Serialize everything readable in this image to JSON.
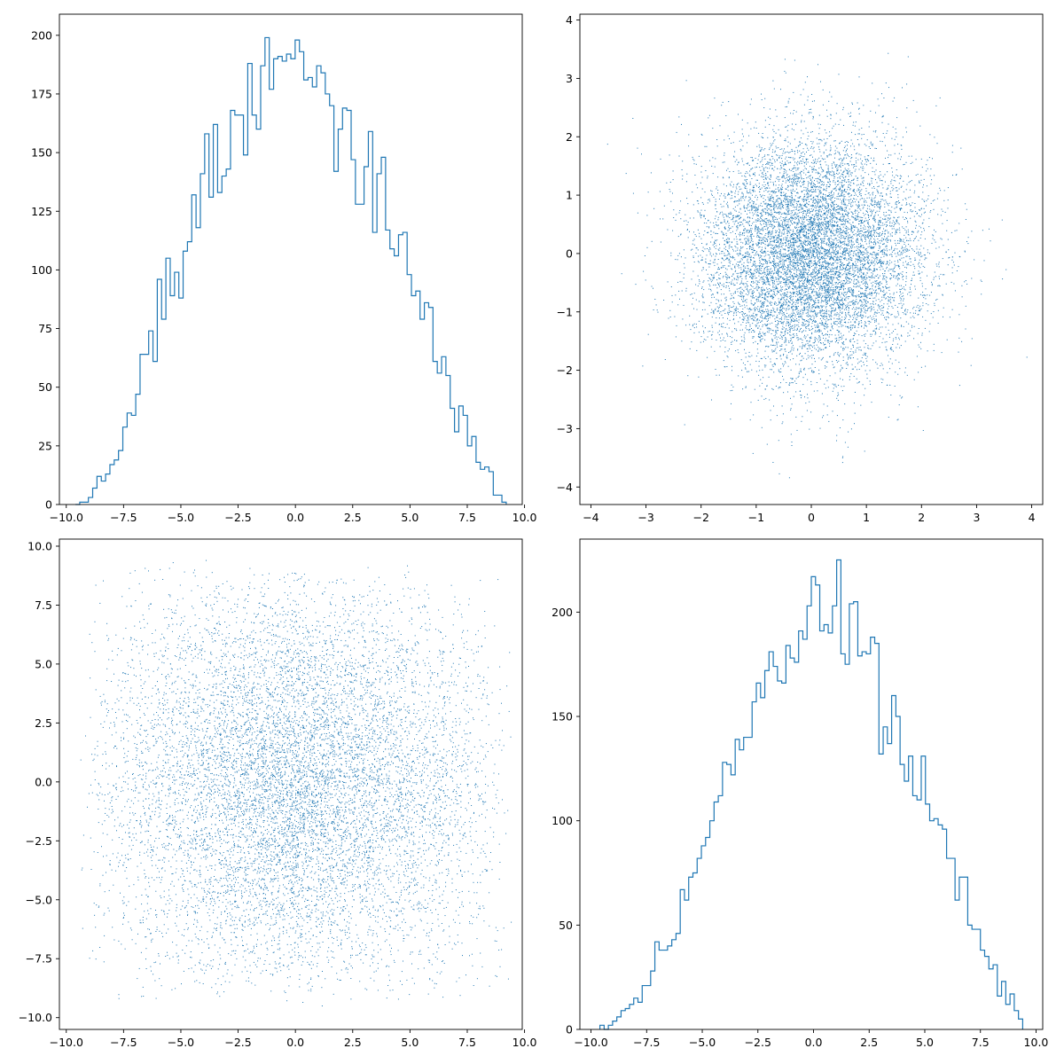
{
  "chart_data": [
    {
      "type": "histogram",
      "position": "top-left",
      "title": "",
      "xlabel": "",
      "ylabel": "",
      "color": "#1f77b4",
      "histtype": "step",
      "bins": 100,
      "bin_range": [
        -9.6,
        9.2
      ],
      "xlim": [
        -10.3,
        9.9
      ],
      "ylim": [
        0,
        209
      ],
      "xticks": [
        -10,
        -7.5,
        -5,
        -2.5,
        0,
        2.5,
        5,
        7.5,
        10
      ],
      "xtick_labels": [
        "−10.0",
        "−7.5",
        "−5.0",
        "−2.5",
        "0.0",
        "2.5",
        "5.0",
        "7.5",
        "10.0"
      ],
      "yticks": [
        0,
        25,
        50,
        75,
        100,
        125,
        150,
        175,
        200
      ],
      "ytick_labels": [
        "0",
        "25",
        "50",
        "75",
        "100",
        "125",
        "150",
        "175",
        "200"
      ],
      "counts": [
        0,
        1,
        1,
        3,
        7,
        12,
        10,
        13,
        17,
        19,
        23,
        33,
        39,
        38,
        47,
        64,
        64,
        74,
        61,
        96,
        79,
        105,
        89,
        99,
        88,
        108,
        112,
        132,
        118,
        141,
        158,
        131,
        162,
        133,
        140,
        143,
        168,
        166,
        166,
        149,
        188,
        166,
        160,
        187,
        199,
        177,
        190,
        191,
        189,
        192,
        190,
        198,
        193,
        181,
        182,
        178,
        187,
        184,
        175,
        170,
        142,
        160,
        169,
        168,
        147,
        128,
        128,
        144,
        159,
        116,
        141,
        148,
        117,
        109,
        106,
        115,
        116,
        98,
        89,
        91,
        79,
        86,
        84,
        61,
        56,
        63,
        55,
        41,
        31,
        42,
        38,
        25,
        29,
        18,
        15,
        16,
        14,
        4,
        4,
        1
      ]
    },
    {
      "type": "scatter",
      "position": "top-right",
      "title": "",
      "xlabel": "",
      "ylabel": "",
      "color": "#1f77b4",
      "marker": ",",
      "n_points": 10000,
      "distribution": "standard normal, mean 0, std 1",
      "xlim": [
        -4.2,
        4.2
      ],
      "ylim": [
        -4.3,
        4.1
      ],
      "xticks": [
        -4,
        -3,
        -2,
        -1,
        0,
        1,
        2,
        3,
        4
      ],
      "xtick_labels": [
        "−4",
        "−3",
        "−2",
        "−1",
        "0",
        "1",
        "2",
        "3",
        "4"
      ],
      "yticks": [
        -4,
        -3,
        -2,
        -1,
        0,
        1,
        2,
        3,
        4
      ],
      "ytick_labels": [
        "−4",
        "−3",
        "−2",
        "−1",
        "0",
        "1",
        "2",
        "3",
        "4"
      ]
    },
    {
      "type": "scatter",
      "position": "bottom-left",
      "title": "",
      "xlabel": "",
      "ylabel": "",
      "color": "#1f77b4",
      "marker": ",",
      "n_points": 10000,
      "distribution": "symmetric triangular, centered at 0, spanning about -9.5 to 9.5",
      "xlim": [
        -10.3,
        9.9
      ],
      "ylim": [
        -10.5,
        10.3
      ],
      "xticks": [
        -10,
        -7.5,
        -5,
        -2.5,
        0,
        2.5,
        5,
        7.5,
        10
      ],
      "xtick_labels": [
        "−10.0",
        "−7.5",
        "−5.0",
        "−2.5",
        "0.0",
        "2.5",
        "5.0",
        "7.5",
        "10.0"
      ],
      "yticks": [
        -10,
        -7.5,
        -5,
        -2.5,
        0,
        2.5,
        5,
        7.5,
        10
      ],
      "ytick_labels": [
        "−10.0",
        "−7.5",
        "−5.0",
        "−2.5",
        "0.0",
        "2.5",
        "5.0",
        "7.5",
        "10.0"
      ]
    },
    {
      "type": "histogram",
      "position": "bottom-right",
      "title": "",
      "xlabel": "",
      "ylabel": "",
      "color": "#1f77b4",
      "histtype": "step",
      "bins": 100,
      "bin_range": [
        -9.6,
        9.4
      ],
      "xlim": [
        -10.5,
        10.3
      ],
      "ylim": [
        0,
        235
      ],
      "xticks": [
        -10,
        -7.5,
        -5,
        -2.5,
        0,
        2.5,
        5,
        7.5,
        10
      ],
      "xtick_labels": [
        "−10.0",
        "−7.5",
        "−5.0",
        "−2.5",
        "0.0",
        "2.5",
        "5.0",
        "7.5",
        "10.0"
      ],
      "yticks": [
        0,
        50,
        100,
        150,
        200
      ],
      "ytick_labels": [
        "0",
        "50",
        "100",
        "150",
        "200"
      ],
      "counts": [
        2,
        0,
        2,
        4,
        6,
        9,
        10,
        12,
        15,
        13,
        21,
        21,
        28,
        42,
        38,
        38,
        40,
        43,
        46,
        67,
        62,
        73,
        75,
        82,
        88,
        92,
        100,
        109,
        112,
        128,
        127,
        122,
        139,
        134,
        140,
        140,
        157,
        166,
        159,
        172,
        181,
        174,
        167,
        166,
        184,
        178,
        176,
        191,
        187,
        203,
        217,
        213,
        191,
        194,
        190,
        203,
        225,
        180,
        175,
        204,
        205,
        179,
        181,
        180,
        188,
        185,
        132,
        145,
        137,
        160,
        150,
        127,
        119,
        131,
        112,
        110,
        131,
        108,
        100,
        101,
        98,
        96,
        82,
        82,
        62,
        73,
        73,
        50,
        48,
        48,
        38,
        35,
        29,
        31,
        16,
        23,
        12,
        17,
        9,
        5
      ]
    }
  ]
}
